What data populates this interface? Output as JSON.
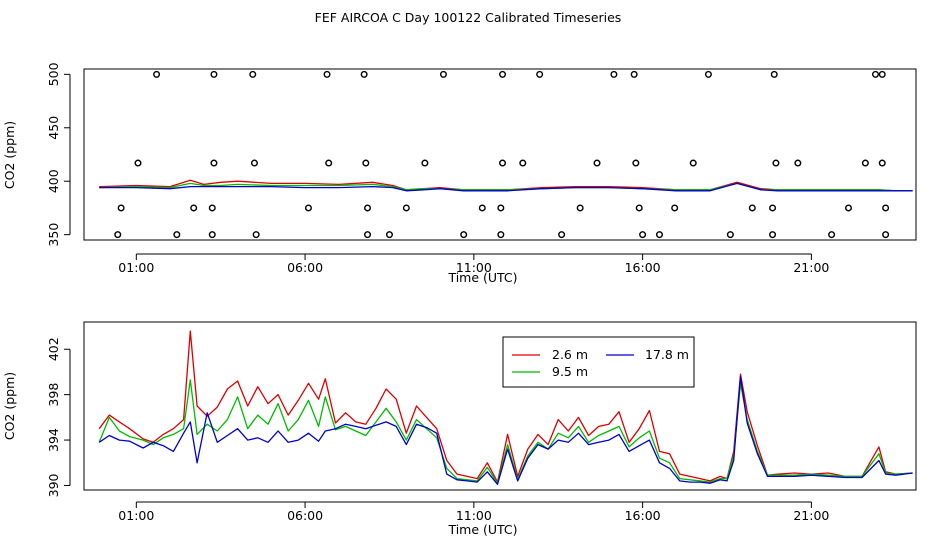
{
  "title": "FEF AIRCOA C  Day 100122  Calibrated Timeseries",
  "chart_data": [
    {
      "type": "scatter+line",
      "xlabel": "Time (UTC)",
      "ylabel": "CO2 (ppm)",
      "xlim": [
        -0.55,
        24.1
      ],
      "ylim": [
        345,
        505
      ],
      "x_ticks": [
        1,
        6,
        11,
        16,
        21
      ],
      "x_tick_labels": [
        "01:00",
        "06:00",
        "11:00",
        "16:00",
        "21:00"
      ],
      "y_ticks": [
        350,
        400,
        450,
        500
      ],
      "y_tick_labels": [
        "350",
        "400",
        "450",
        "500"
      ],
      "flag_points": [
        [
          0.45,
          350
        ],
        [
          2.2,
          350
        ],
        [
          3.25,
          350
        ],
        [
          4.55,
          350
        ],
        [
          7.85,
          350
        ],
        [
          8.5,
          350
        ],
        [
          10.7,
          350
        ],
        [
          11.8,
          350
        ],
        [
          13.6,
          350
        ],
        [
          16,
          350
        ],
        [
          16.5,
          350
        ],
        [
          18.6,
          350
        ],
        [
          19.85,
          350
        ],
        [
          21.6,
          350
        ],
        [
          23.2,
          350
        ],
        [
          0.55,
          375
        ],
        [
          2.7,
          375
        ],
        [
          3.25,
          375
        ],
        [
          6.1,
          375
        ],
        [
          7.85,
          375
        ],
        [
          9,
          375
        ],
        [
          11.25,
          375
        ],
        [
          11.8,
          375
        ],
        [
          14.15,
          375
        ],
        [
          15.9,
          375
        ],
        [
          16.95,
          375
        ],
        [
          19.25,
          375
        ],
        [
          19.85,
          375
        ],
        [
          22.1,
          375
        ],
        [
          23.2,
          375
        ],
        [
          1.05,
          417
        ],
        [
          3.3,
          417
        ],
        [
          4.5,
          417
        ],
        [
          6.7,
          417
        ],
        [
          7.8,
          417
        ],
        [
          9.55,
          417
        ],
        [
          11.85,
          417
        ],
        [
          12.45,
          417
        ],
        [
          14.65,
          417
        ],
        [
          15.8,
          417
        ],
        [
          17.5,
          417
        ],
        [
          19.95,
          417
        ],
        [
          20.6,
          417
        ],
        [
          22.6,
          417
        ],
        [
          23.1,
          417
        ],
        [
          1.6,
          500
        ],
        [
          3.3,
          500
        ],
        [
          4.45,
          500
        ],
        [
          6.65,
          500
        ],
        [
          7.75,
          500
        ],
        [
          10.1,
          500
        ],
        [
          11.85,
          500
        ],
        [
          12.95,
          500
        ],
        [
          15.15,
          500
        ],
        [
          15.75,
          500
        ],
        [
          17.95,
          500
        ],
        [
          19.9,
          500
        ],
        [
          22.9,
          500
        ],
        [
          23.1,
          500
        ]
      ],
      "series": [
        {
          "name": "2.6 m",
          "color": "#dd0000",
          "x": [
            -0.1,
            1,
            2,
            2.6,
            3,
            3.5,
            4,
            5,
            6,
            7,
            8,
            8.6,
            9,
            9.5,
            10,
            10.7,
            12,
            13,
            14,
            15,
            16,
            17,
            18,
            18.8,
            19.5,
            20,
            21,
            22,
            23,
            23.5,
            24
          ],
          "y": [
            395,
            396,
            395,
            401,
            397,
            399,
            400,
            398,
            398,
            397,
            399,
            396,
            392,
            393,
            394,
            392,
            392,
            394,
            395,
            395,
            394,
            392,
            392,
            399,
            393,
            392,
            392,
            392,
            392,
            391,
            391
          ]
        },
        {
          "name": "9.5 m",
          "color": "#00bb00",
          "x": [
            -0.1,
            1,
            2,
            2.6,
            3,
            3.5,
            4,
            5,
            6,
            7,
            8,
            8.6,
            9,
            9.5,
            10,
            10.7,
            12,
            13,
            14,
            15,
            16,
            17,
            18,
            18.8,
            19.5,
            20,
            21,
            22,
            23,
            23.5,
            24
          ],
          "y": [
            394,
            395,
            394,
            398,
            396,
            396,
            397,
            396,
            396,
            396,
            397,
            395,
            392,
            393,
            393,
            392,
            392,
            393,
            394,
            394,
            393,
            392,
            392,
            398,
            392,
            392,
            392,
            392,
            392,
            391,
            391
          ]
        },
        {
          "name": "17.8 m",
          "color": "#0000cc",
          "x": [
            -0.1,
            1,
            2,
            2.6,
            3,
            3.5,
            4,
            5,
            6,
            7,
            8,
            8.6,
            9,
            9.5,
            10,
            10.7,
            12,
            13,
            14,
            15,
            16,
            17,
            18,
            18.8,
            19.5,
            20,
            21,
            22,
            23,
            23.5,
            24
          ],
          "y": [
            394,
            394,
            393,
            395,
            395,
            395,
            395,
            395,
            394,
            394,
            395,
            394,
            391,
            392,
            393,
            391,
            391,
            393,
            394,
            394,
            393,
            391,
            391,
            398,
            392,
            391,
            391,
            391,
            391,
            391,
            391
          ]
        }
      ]
    },
    {
      "type": "line",
      "xlabel": "Time (UTC)",
      "ylabel": "CO2 (ppm)",
      "xlim": [
        -0.55,
        24.1
      ],
      "ylim": [
        389.6,
        404.4
      ],
      "x_ticks": [
        1,
        6,
        11,
        16,
        21
      ],
      "x_tick_labels": [
        "01:00",
        "06:00",
        "11:00",
        "16:00",
        "21:00"
      ],
      "y_ticks": [
        390,
        394,
        398,
        402
      ],
      "y_tick_labels": [
        "390",
        "394",
        "398",
        "402"
      ],
      "legend": {
        "position": "top-center",
        "entries": [
          "2.6 m",
          "9.5 m",
          "17.8 m"
        ]
      },
      "series": [
        {
          "name": "2.6 m",
          "color": "#dd0000",
          "x": [
            -0.1,
            0.2,
            0.5,
            0.8,
            1.2,
            1.5,
            1.8,
            2.1,
            2.4,
            2.6,
            2.8,
            3.1,
            3.4,
            3.7,
            4.0,
            4.3,
            4.6,
            4.9,
            5.2,
            5.5,
            5.8,
            6.1,
            6.4,
            6.6,
            6.9,
            7.2,
            7.5,
            7.8,
            8.1,
            8.4,
            8.7,
            9.0,
            9.3,
            9.6,
            9.9,
            10.2,
            10.5,
            10.8,
            11.1,
            11.4,
            11.7,
            12.0,
            12.3,
            12.6,
            12.9,
            13.2,
            13.5,
            13.8,
            14.1,
            14.4,
            14.7,
            15.0,
            15.3,
            15.6,
            15.9,
            16.2,
            16.5,
            16.8,
            17.1,
            17.4,
            17.7,
            18.0,
            18.3,
            18.5,
            18.7,
            18.9,
            19.1,
            19.4,
            19.7,
            20.0,
            20.5,
            21.0,
            21.5,
            22.0,
            22.5,
            23.0,
            23.2,
            23.5,
            24.0
          ],
          "y": [
            395.0,
            396.2,
            395.6,
            395.0,
            394.1,
            393.8,
            394.5,
            395.0,
            395.8,
            403.6,
            397.0,
            396.1,
            396.9,
            398.5,
            399.2,
            397.0,
            398.7,
            397.2,
            398.0,
            396.2,
            397.5,
            399.0,
            397.6,
            399.4,
            395.5,
            396.4,
            395.6,
            395.4,
            396.8,
            398.5,
            397.6,
            394.6,
            397.0,
            396.0,
            395.0,
            392.2,
            391.0,
            390.8,
            390.6,
            392.0,
            390.3,
            394.5,
            390.8,
            393.2,
            394.5,
            393.6,
            395.8,
            394.8,
            396.0,
            394.4,
            395.2,
            395.4,
            396.5,
            393.8,
            395.0,
            396.6,
            393.0,
            392.8,
            391.0,
            390.8,
            390.6,
            390.4,
            390.8,
            390.6,
            393.0,
            399.8,
            396.5,
            393.5,
            390.9,
            391.0,
            391.1,
            391.0,
            391.1,
            390.8,
            390.8,
            393.4,
            391.2,
            391.0,
            391.1
          ]
        },
        {
          "name": "9.5 m",
          "color": "#00bb00",
          "x": [
            -0.1,
            0.2,
            0.5,
            0.8,
            1.2,
            1.5,
            1.8,
            2.1,
            2.4,
            2.6,
            2.8,
            3.1,
            3.4,
            3.7,
            4.0,
            4.3,
            4.6,
            4.9,
            5.2,
            5.5,
            5.8,
            6.1,
            6.4,
            6.6,
            6.9,
            7.2,
            7.5,
            7.8,
            8.1,
            8.4,
            8.7,
            9.0,
            9.3,
            9.6,
            9.9,
            10.2,
            10.5,
            10.8,
            11.1,
            11.4,
            11.7,
            12.0,
            12.3,
            12.6,
            12.9,
            13.2,
            13.5,
            13.8,
            14.1,
            14.4,
            14.7,
            15.0,
            15.3,
            15.6,
            15.9,
            16.2,
            16.5,
            16.8,
            17.1,
            17.4,
            17.7,
            18.0,
            18.3,
            18.5,
            18.7,
            18.9,
            19.1,
            19.4,
            19.7,
            20.0,
            20.5,
            21.0,
            21.5,
            22.0,
            22.5,
            23.0,
            23.2,
            23.5,
            24.0
          ],
          "y": [
            393.8,
            396.0,
            394.8,
            394.3,
            394.0,
            393.6,
            394.2,
            394.5,
            395.0,
            399.3,
            394.5,
            395.4,
            394.8,
            395.8,
            397.8,
            395.0,
            396.2,
            395.4,
            397.2,
            394.8,
            395.8,
            397.5,
            395.2,
            397.8,
            394.9,
            395.2,
            394.8,
            394.4,
            395.6,
            396.8,
            395.6,
            394.0,
            395.8,
            395.0,
            394.2,
            391.5,
            390.6,
            390.5,
            390.4,
            391.6,
            390.2,
            393.6,
            390.5,
            392.6,
            393.8,
            393.2,
            394.6,
            394.2,
            395.2,
            393.8,
            394.4,
            394.8,
            395.2,
            393.4,
            394.2,
            394.8,
            392.4,
            392.0,
            390.6,
            390.5,
            390.4,
            390.3,
            390.6,
            390.6,
            392.6,
            399.0,
            395.8,
            393.0,
            390.9,
            390.9,
            390.9,
            391.0,
            390.9,
            390.8,
            390.8,
            392.8,
            391.1,
            391.0,
            391.1
          ]
        },
        {
          "name": "17.8 m",
          "color": "#0000cc",
          "x": [
            -0.1,
            0.2,
            0.5,
            0.8,
            1.2,
            1.5,
            1.8,
            2.1,
            2.4,
            2.6,
            2.8,
            3.1,
            3.4,
            3.7,
            4.0,
            4.3,
            4.6,
            4.9,
            5.2,
            5.5,
            5.8,
            6.1,
            6.4,
            6.6,
            6.9,
            7.2,
            7.5,
            7.8,
            8.1,
            8.4,
            8.7,
            9.0,
            9.3,
            9.6,
            9.9,
            10.2,
            10.5,
            10.8,
            11.1,
            11.4,
            11.7,
            12.0,
            12.3,
            12.6,
            12.9,
            13.2,
            13.5,
            13.8,
            14.1,
            14.4,
            14.7,
            15.0,
            15.3,
            15.6,
            15.9,
            16.2,
            16.5,
            16.8,
            17.1,
            17.4,
            17.7,
            18.0,
            18.3,
            18.5,
            18.7,
            18.9,
            19.1,
            19.4,
            19.7,
            20.0,
            20.5,
            21.0,
            21.5,
            22.0,
            22.5,
            23.0,
            23.2,
            23.5,
            24.0
          ],
          "y": [
            393.8,
            394.4,
            394.0,
            393.9,
            393.3,
            393.8,
            393.5,
            393.0,
            394.6,
            395.6,
            392.0,
            396.4,
            393.8,
            394.4,
            395.0,
            394.0,
            394.2,
            393.8,
            394.8,
            393.8,
            394.0,
            394.6,
            393.9,
            394.8,
            395.0,
            395.4,
            395.2,
            395.0,
            395.3,
            395.6,
            395.2,
            393.6,
            395.4,
            395.1,
            394.6,
            391.0,
            390.5,
            390.4,
            390.3,
            391.2,
            390.1,
            393.2,
            390.4,
            392.4,
            393.6,
            393.2,
            394.0,
            393.8,
            394.6,
            393.6,
            393.8,
            394.0,
            394.5,
            393.0,
            393.5,
            394.0,
            392.0,
            391.5,
            390.4,
            390.3,
            390.3,
            390.2,
            390.5,
            390.4,
            392.2,
            399.6,
            395.5,
            392.8,
            390.8,
            390.8,
            390.8,
            390.9,
            390.8,
            390.7,
            390.7,
            392.2,
            391.0,
            390.9,
            391.1
          ]
        }
      ]
    }
  ]
}
